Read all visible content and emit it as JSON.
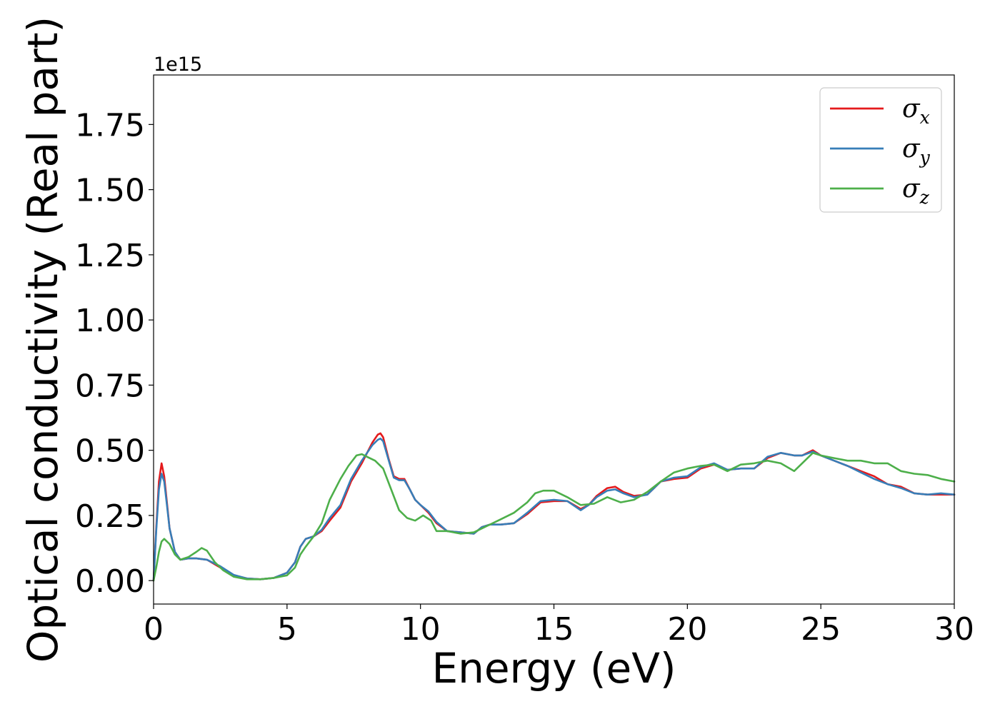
{
  "chart_data": {
    "type": "line",
    "xlabel": "Energy (eV)",
    "ylabel": "Optical conductivity (Real part)",
    "y_offset_label": "1e15",
    "xlim": [
      0,
      30
    ],
    "ylim": [
      -0.09,
      1.94
    ],
    "xticks": [
      0,
      5,
      10,
      15,
      20,
      25,
      30
    ],
    "xtick_labels": [
      "0",
      "5",
      "10",
      "15",
      "20",
      "25",
      "30"
    ],
    "yticks": [
      0.0,
      0.25,
      0.5,
      0.75,
      1.0,
      1.25,
      1.5,
      1.75
    ],
    "ytick_labels": [
      "0.00",
      "0.25",
      "0.50",
      "0.75",
      "1.00",
      "1.25",
      "1.50",
      "1.75"
    ],
    "grid": false,
    "legend_position": "top-right",
    "series": [
      {
        "name": "σx",
        "legend_main": "σ",
        "legend_sub": "x",
        "color": "#e41a1c",
        "x": [
          0,
          0.1,
          0.2,
          0.3,
          0.4,
          0.5,
          0.6,
          0.8,
          1.0,
          1.3,
          1.6,
          2.0,
          2.5,
          3.0,
          3.5,
          4.0,
          4.5,
          5.0,
          5.3,
          5.5,
          5.7,
          6.0,
          6.3,
          6.6,
          7.0,
          7.4,
          7.8,
          8.0,
          8.2,
          8.4,
          8.5,
          8.6,
          8.8,
          9.0,
          9.2,
          9.4,
          9.6,
          9.8,
          10.0,
          10.3,
          10.6,
          11.0,
          11.5,
          12.0,
          12.3,
          12.6,
          13.0,
          13.5,
          14.0,
          14.5,
          15.0,
          15.5,
          16.0,
          16.3,
          16.6,
          17.0,
          17.3,
          17.6,
          18.0,
          18.5,
          19.0,
          19.5,
          20.0,
          20.5,
          21.0,
          21.5,
          22.0,
          22.5,
          23.0,
          23.5,
          24.0,
          24.3,
          24.7,
          25.0,
          25.5,
          26.0,
          26.5,
          27.0,
          27.5,
          28.0,
          28.5,
          29.0,
          29.5,
          30.0
        ],
        "y": [
          0.0,
          0.2,
          0.38,
          0.45,
          0.4,
          0.3,
          0.2,
          0.11,
          0.08,
          0.085,
          0.085,
          0.08,
          0.05,
          0.02,
          0.008,
          0.005,
          0.01,
          0.03,
          0.07,
          0.13,
          0.16,
          0.17,
          0.19,
          0.23,
          0.28,
          0.38,
          0.45,
          0.49,
          0.53,
          0.56,
          0.565,
          0.55,
          0.47,
          0.4,
          0.39,
          0.39,
          0.35,
          0.31,
          0.29,
          0.26,
          0.22,
          0.19,
          0.185,
          0.18,
          0.205,
          0.215,
          0.215,
          0.22,
          0.255,
          0.3,
          0.305,
          0.305,
          0.275,
          0.29,
          0.325,
          0.355,
          0.36,
          0.34,
          0.325,
          0.33,
          0.38,
          0.39,
          0.395,
          0.43,
          0.445,
          0.425,
          0.43,
          0.43,
          0.47,
          0.49,
          0.48,
          0.48,
          0.5,
          0.48,
          0.46,
          0.44,
          0.42,
          0.4,
          0.37,
          0.36,
          0.335,
          0.33,
          0.33,
          0.33
        ]
      },
      {
        "name": "σy",
        "legend_main": "σ",
        "legend_sub": "y",
        "color": "#377eb8",
        "x": [
          0,
          0.1,
          0.2,
          0.3,
          0.4,
          0.5,
          0.6,
          0.8,
          1.0,
          1.3,
          1.6,
          2.0,
          2.5,
          3.0,
          3.5,
          4.0,
          4.5,
          5.0,
          5.3,
          5.5,
          5.7,
          6.0,
          6.3,
          6.6,
          7.0,
          7.4,
          7.8,
          8.0,
          8.2,
          8.4,
          8.5,
          8.6,
          8.8,
          9.0,
          9.2,
          9.4,
          9.6,
          9.8,
          10.0,
          10.3,
          10.6,
          11.0,
          11.5,
          12.0,
          12.3,
          12.6,
          13.0,
          13.5,
          14.0,
          14.5,
          15.0,
          15.5,
          16.0,
          16.3,
          16.6,
          17.0,
          17.3,
          17.6,
          18.0,
          18.5,
          19.0,
          19.5,
          20.0,
          20.5,
          21.0,
          21.5,
          22.0,
          22.5,
          23.0,
          23.5,
          24.0,
          24.3,
          24.7,
          25.0,
          25.5,
          26.0,
          26.5,
          27.0,
          27.5,
          28.0,
          28.5,
          29.0,
          29.5,
          30.0
        ],
        "y": [
          0.0,
          0.19,
          0.35,
          0.41,
          0.38,
          0.29,
          0.2,
          0.11,
          0.08,
          0.085,
          0.085,
          0.08,
          0.055,
          0.022,
          0.008,
          0.005,
          0.01,
          0.03,
          0.07,
          0.13,
          0.16,
          0.17,
          0.195,
          0.24,
          0.29,
          0.39,
          0.46,
          0.49,
          0.52,
          0.54,
          0.545,
          0.535,
          0.465,
          0.395,
          0.385,
          0.385,
          0.35,
          0.31,
          0.29,
          0.265,
          0.225,
          0.19,
          0.185,
          0.18,
          0.205,
          0.215,
          0.215,
          0.22,
          0.26,
          0.305,
          0.31,
          0.305,
          0.27,
          0.29,
          0.32,
          0.345,
          0.35,
          0.335,
          0.32,
          0.33,
          0.38,
          0.395,
          0.4,
          0.435,
          0.45,
          0.425,
          0.43,
          0.43,
          0.475,
          0.49,
          0.48,
          0.48,
          0.495,
          0.48,
          0.46,
          0.44,
          0.415,
          0.39,
          0.37,
          0.355,
          0.335,
          0.33,
          0.335,
          0.33
        ]
      },
      {
        "name": "σz",
        "legend_main": "σ",
        "legend_sub": "z",
        "color": "#4daf4a",
        "x": [
          0,
          0.1,
          0.2,
          0.3,
          0.4,
          0.6,
          0.8,
          1.0,
          1.3,
          1.6,
          1.8,
          2.0,
          2.3,
          2.6,
          3.0,
          3.5,
          4.0,
          4.5,
          5.0,
          5.3,
          5.5,
          5.7,
          6.0,
          6.3,
          6.6,
          7.0,
          7.3,
          7.6,
          7.8,
          8.0,
          8.3,
          8.6,
          8.9,
          9.2,
          9.5,
          9.8,
          10.1,
          10.4,
          10.6,
          11.0,
          11.5,
          12.0,
          12.5,
          13.0,
          13.5,
          14.0,
          14.3,
          14.6,
          15.0,
          15.5,
          16.0,
          16.5,
          17.0,
          17.5,
          18.0,
          18.5,
          19.0,
          19.5,
          20.0,
          20.5,
          21.0,
          21.5,
          22.0,
          22.5,
          23.0,
          23.5,
          24.0,
          24.3,
          24.7,
          25.0,
          25.5,
          26.0,
          26.5,
          27.0,
          27.5,
          28.0,
          28.5,
          29.0,
          29.5,
          30.0
        ],
        "y": [
          0.0,
          0.05,
          0.11,
          0.15,
          0.16,
          0.14,
          0.1,
          0.08,
          0.09,
          0.11,
          0.125,
          0.115,
          0.07,
          0.04,
          0.015,
          0.005,
          0.005,
          0.01,
          0.02,
          0.05,
          0.1,
          0.13,
          0.17,
          0.22,
          0.31,
          0.39,
          0.44,
          0.48,
          0.485,
          0.475,
          0.46,
          0.43,
          0.35,
          0.27,
          0.24,
          0.23,
          0.25,
          0.23,
          0.19,
          0.19,
          0.18,
          0.185,
          0.21,
          0.235,
          0.26,
          0.3,
          0.335,
          0.345,
          0.345,
          0.32,
          0.29,
          0.295,
          0.32,
          0.3,
          0.31,
          0.34,
          0.38,
          0.415,
          0.43,
          0.44,
          0.445,
          0.42,
          0.445,
          0.45,
          0.46,
          0.45,
          0.42,
          0.45,
          0.49,
          0.48,
          0.47,
          0.46,
          0.46,
          0.45,
          0.45,
          0.42,
          0.41,
          0.405,
          0.39,
          0.38
        ]
      }
    ]
  }
}
